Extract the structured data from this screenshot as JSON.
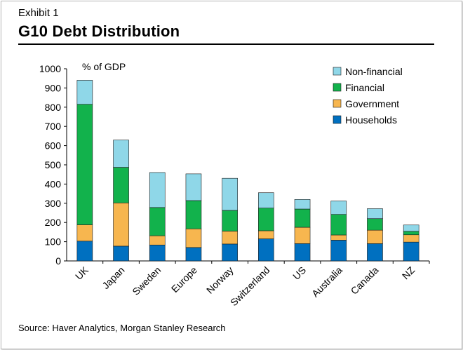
{
  "exhibit_label": "Exhibit 1",
  "title": "G10 Debt Distribution",
  "source": "Source: Haver Analytics, Morgan Stanley Research",
  "chart_data": {
    "type": "bar",
    "stacked": true,
    "title": "G10 Debt Distribution",
    "ylabel": "% of GDP",
    "xlabel": "",
    "ylim": [
      0,
      1000
    ],
    "yticks": [
      0,
      100,
      200,
      300,
      400,
      500,
      600,
      700,
      800,
      900,
      1000
    ],
    "categories": [
      "UK",
      "Japan",
      "Sweden",
      "Europe",
      "Norway",
      "Switzerland",
      "US",
      "Australia",
      "Canada",
      "NZ"
    ],
    "legend_position": "top-right",
    "series": [
      {
        "name": "Households",
        "color": "#0070c0",
        "values": [
          103,
          77,
          83,
          70,
          88,
          115,
          90,
          108,
          90,
          98
        ]
      },
      {
        "name": "Government",
        "color": "#f7b64f",
        "values": [
          85,
          225,
          48,
          97,
          67,
          42,
          85,
          27,
          70,
          38
        ]
      },
      {
        "name": "Financial",
        "color": "#12b24c",
        "values": [
          627,
          185,
          147,
          147,
          108,
          118,
          95,
          107,
          60,
          18
        ]
      },
      {
        "name": "Non-financial",
        "color": "#8fd7e8",
        "values": [
          125,
          142,
          182,
          139,
          167,
          80,
          50,
          70,
          52,
          33
        ]
      }
    ],
    "legend_order": [
      "Non-financial",
      "Financial",
      "Government",
      "Households"
    ]
  }
}
